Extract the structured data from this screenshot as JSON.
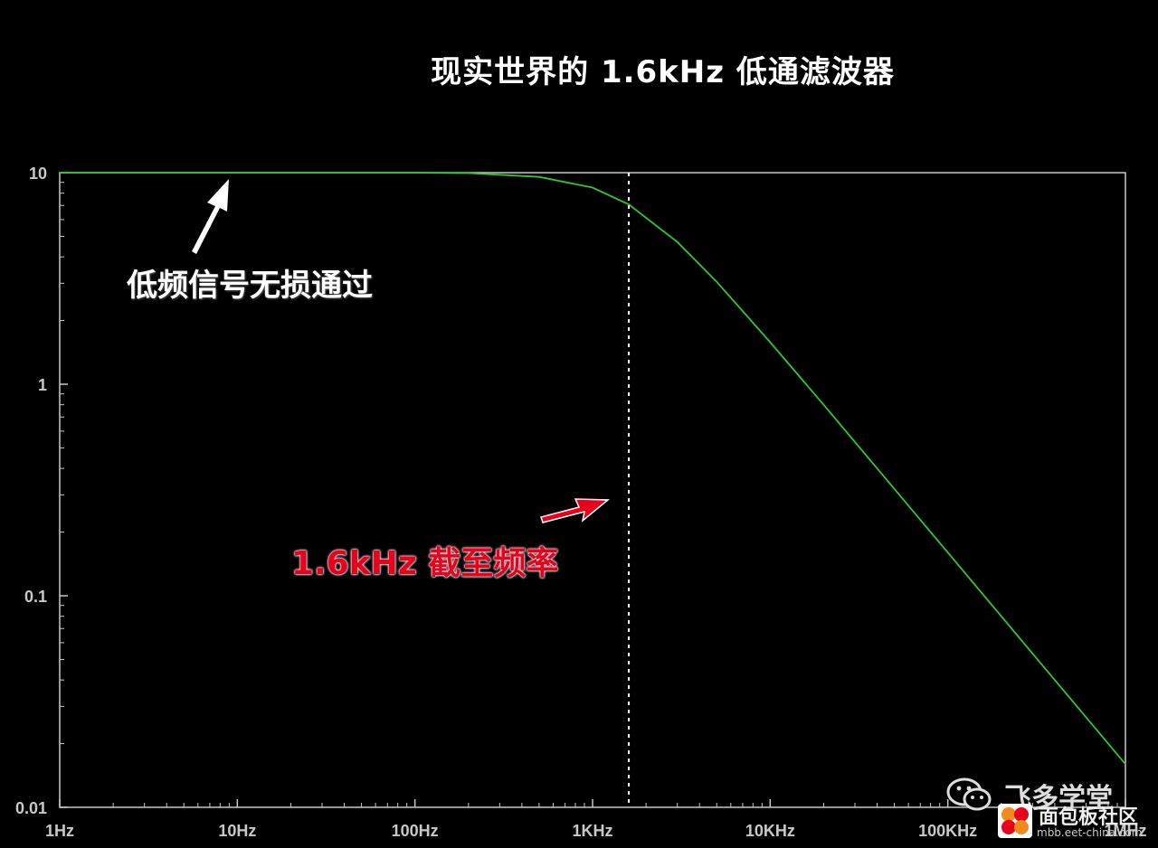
{
  "title": "现实世界的 1.6kHz 低通滤波器",
  "annotations": {
    "passband": "低频信号无损通过",
    "cutoff": "1.6kHz 截至频率"
  },
  "watermark": {
    "brand": "飞多学堂",
    "site_name": "面包板社区",
    "url": "mbb.eet-china.com"
  },
  "icons": {
    "wechat": "wechat-icon",
    "logo": "mbb-logo-icon"
  },
  "colors": {
    "background": "#000000",
    "curve": "#2fc82f",
    "axes": "#c8c8c8",
    "cutoff_line": "#ffffff",
    "passband_arrow": "#ffffff",
    "cutoff_arrow": "#e8001c"
  },
  "chart_data": {
    "type": "line",
    "x_scale": "log",
    "y_scale": "log",
    "xlim": [
      1,
      1000000
    ],
    "ylim": [
      0.01,
      10
    ],
    "x_ticks": [
      1,
      10,
      100,
      1000,
      10000,
      100000,
      1000000
    ],
    "x_tick_labels": [
      "1Hz",
      "10Hz",
      "100Hz",
      "1KHz",
      "10KHz",
      "100KHz",
      "1MHz"
    ],
    "y_ticks": [
      10,
      1,
      0.1,
      0.01
    ],
    "y_tick_labels": [
      "10",
      "1",
      "0.1",
      "0.01"
    ],
    "cutoff_frequency": 1600,
    "grid": false,
    "series": [
      {
        "x": [
          1,
          10,
          100,
          200,
          500,
          1000,
          1600,
          3000,
          5000,
          10000,
          20000,
          50000,
          100000,
          200000,
          500000,
          1000000
        ],
        "values": [
          10,
          10,
          10,
          9.95,
          9.55,
          8.5,
          7.07,
          4.7,
          3.05,
          1.58,
          0.8,
          0.32,
          0.16,
          0.08,
          0.032,
          0.016
        ]
      }
    ]
  }
}
